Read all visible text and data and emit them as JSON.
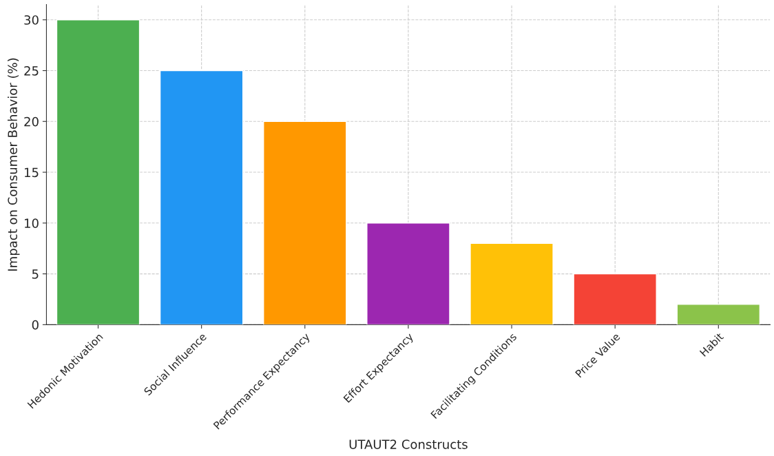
{
  "chart_data": {
    "type": "bar",
    "xlabel": "UTAUT2 Constructs",
    "ylabel": "Impact on Consumer Behavior (%)",
    "categories": [
      "Hedonic Motivation",
      "Social Influence",
      "Performance Expectancy",
      "Effort Expectancy",
      "Facilitating Conditions",
      "Price Value",
      "Habit"
    ],
    "values": [
      30,
      25,
      20,
      10,
      8,
      5,
      2
    ],
    "colors": [
      "#4caf50",
      "#2196f3",
      "#ff9800",
      "#9c27b0",
      "#ffc107",
      "#f44336",
      "#8bc34a"
    ],
    "ylim": [
      0,
      31.5
    ],
    "yticks": [
      0,
      5,
      10,
      15,
      20,
      25,
      30
    ],
    "grid": true
  }
}
